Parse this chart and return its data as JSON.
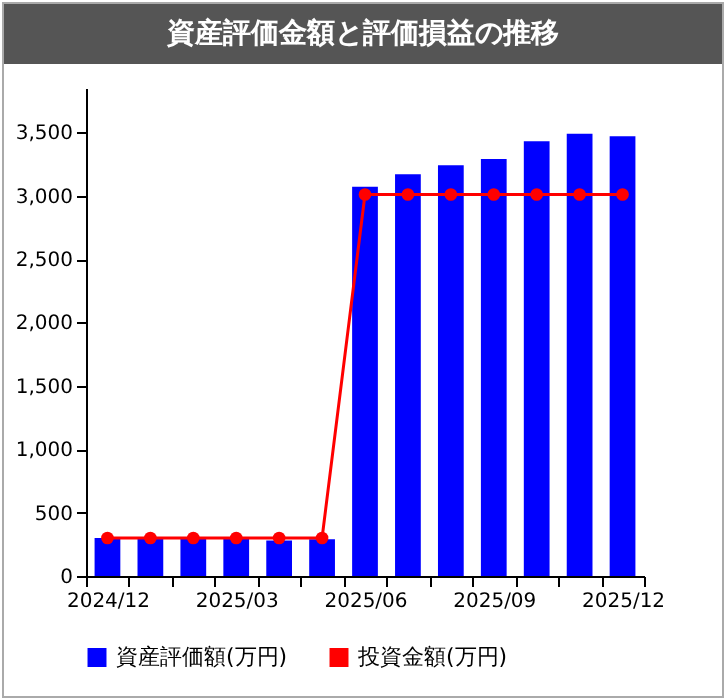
{
  "chart_data": {
    "type": "bar",
    "title": "資産評価金額と評価損益の推移",
    "categories": [
      "2024/12",
      null,
      null,
      "2025/03",
      null,
      null,
      "2025/06",
      null,
      null,
      "2025/09",
      null,
      null,
      "2025/12"
    ],
    "series": [
      {
        "name": "資産評価額(万円)",
        "color": "#0000ff",
        "values": [
          300,
          300,
          300,
          300,
          280,
          290,
          3070,
          3170,
          3240,
          3290,
          3430,
          3490,
          3470
        ]
      },
      {
        "name": "投資金額(万円)",
        "type": "line",
        "color": "#ff0000",
        "values": [
          300,
          300,
          300,
          300,
          300,
          300,
          3010,
          3010,
          3010,
          3010,
          3010,
          3010,
          3010
        ]
      }
    ],
    "ylim": [
      0,
      3850
    ],
    "yticks": [
      0,
      500,
      {
        "value": 1000,
        "label": "1,000"
      },
      {
        "value": 1500,
        "label": "1,500"
      },
      {
        "value": 2000,
        "label": "2,000"
      },
      {
        "value": 2500,
        "label": "2,500"
      },
      {
        "value": 3000,
        "label": "3,000"
      },
      {
        "value": 3500,
        "label": "3,500"
      }
    ],
    "grid": false,
    "legend": "bottom",
    "marker": "circle"
  }
}
